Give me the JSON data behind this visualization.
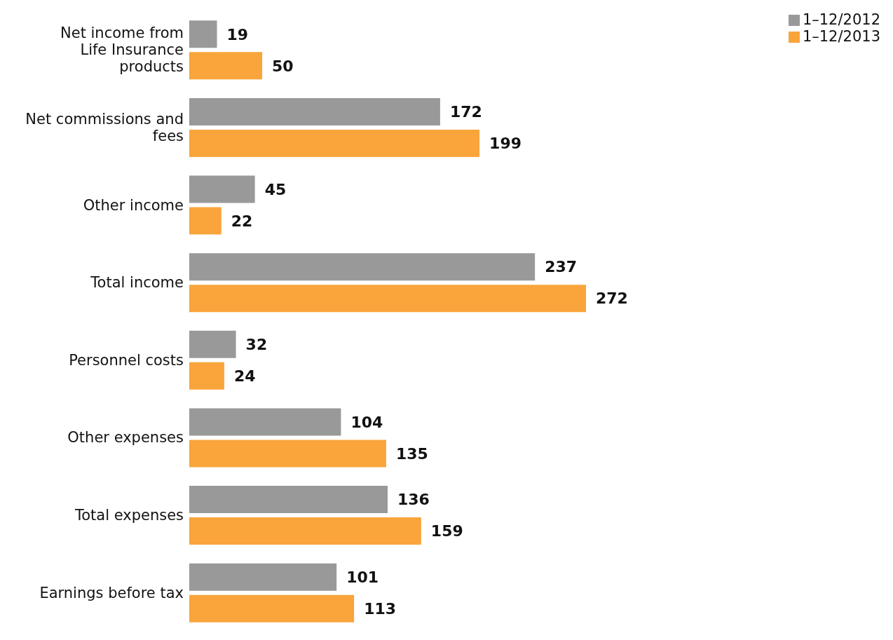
{
  "chart_data": {
    "type": "bar",
    "orientation": "horizontal",
    "categories": [
      "Net income from Life Insurance products",
      "Net commissions and fees",
      "Other income",
      "Total income",
      "Personnel costs",
      "Other expenses",
      "Total expenses",
      "Earnings before tax"
    ],
    "series": [
      {
        "name": "1–12/2012",
        "color": "#999999",
        "values": [
          19,
          172,
          45,
          237,
          32,
          104,
          136,
          101
        ]
      },
      {
        "name": "1–12/2013",
        "color": "#f9a53b",
        "values": [
          50,
          199,
          22,
          272,
          24,
          135,
          159,
          113
        ]
      }
    ],
    "data_labels": true,
    "legend": "top right",
    "grid": false
  }
}
